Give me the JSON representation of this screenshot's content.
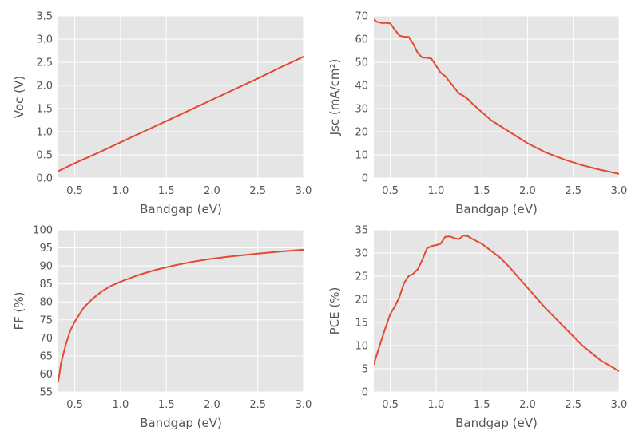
{
  "colors": {
    "series": "#e24a33",
    "panel_bg": "#e5e5e5",
    "grid": "#ffffff",
    "text": "#555555"
  },
  "chart_data": [
    {
      "type": "line",
      "xlabel": "Bandgap (eV)",
      "ylabel": "Voc (V)",
      "xlim": [
        0.32,
        3.0
      ],
      "ylim": [
        0,
        3.5
      ],
      "xticks": [
        "0.5",
        "1.0",
        "1.5",
        "2.0",
        "2.5",
        "3.0"
      ],
      "xtick_values": [
        0.5,
        1.0,
        1.5,
        2.0,
        2.5,
        3.0
      ],
      "yticks": [
        "0.0",
        "0.5",
        "1.0",
        "1.5",
        "2.0",
        "2.5",
        "3.0",
        "3.5"
      ],
      "ytick_values": [
        0,
        0.5,
        1.0,
        1.5,
        2.0,
        2.5,
        3.0,
        3.5
      ],
      "grid": true,
      "x": [
        0.32,
        0.5,
        0.75,
        1.0,
        1.25,
        1.5,
        1.75,
        2.0,
        2.25,
        2.5,
        2.75,
        3.0
      ],
      "y": [
        0.15,
        0.32,
        0.54,
        0.77,
        1.0,
        1.23,
        1.46,
        1.69,
        1.92,
        2.15,
        2.39,
        2.62
      ]
    },
    {
      "type": "line",
      "xlabel": "Bandgap (eV)",
      "ylabel": "Jsc (mA/cm²)",
      "xlim": [
        0.32,
        3.0
      ],
      "ylim": [
        0,
        70
      ],
      "xticks": [
        "0.5",
        "1.0",
        "1.5",
        "2.0",
        "2.5",
        "3.0"
      ],
      "xtick_values": [
        0.5,
        1.0,
        1.5,
        2.0,
        2.5,
        3.0
      ],
      "yticks": [
        "0",
        "10",
        "20",
        "30",
        "40",
        "50",
        "60",
        "70"
      ],
      "ytick_values": [
        0,
        10,
        20,
        30,
        40,
        50,
        60,
        70
      ],
      "grid": true,
      "x": [
        0.32,
        0.35,
        0.4,
        0.45,
        0.5,
        0.55,
        0.6,
        0.65,
        0.7,
        0.75,
        0.8,
        0.85,
        0.9,
        0.95,
        1.0,
        1.05,
        1.1,
        1.15,
        1.2,
        1.25,
        1.3,
        1.35,
        1.4,
        1.5,
        1.6,
        1.7,
        1.8,
        2.0,
        2.2,
        2.4,
        2.6,
        2.8,
        3.0
      ],
      "y": [
        68.5,
        67.5,
        67.0,
        67.0,
        66.8,
        64.0,
        61.5,
        61.0,
        61.0,
        58.0,
        54.0,
        52.0,
        52.0,
        51.5,
        48.5,
        45.5,
        44.0,
        41.5,
        39.0,
        36.5,
        35.5,
        34.0,
        32.0,
        28.5,
        25.0,
        22.5,
        20.0,
        15.0,
        11.0,
        8.0,
        5.5,
        3.5,
        1.8
      ]
    },
    {
      "type": "line",
      "xlabel": "Bandgap (eV)",
      "ylabel": "FF (%)",
      "xlim": [
        0.32,
        3.0
      ],
      "ylim": [
        55,
        100
      ],
      "xticks": [
        "0.5",
        "1.0",
        "1.5",
        "2.0",
        "2.5",
        "3.0"
      ],
      "xtick_values": [
        0.5,
        1.0,
        1.5,
        2.0,
        2.5,
        3.0
      ],
      "yticks": [
        "55",
        "60",
        "65",
        "70",
        "75",
        "80",
        "85",
        "90",
        "95",
        "100"
      ],
      "ytick_values": [
        55,
        60,
        65,
        70,
        75,
        80,
        85,
        90,
        95,
        100
      ],
      "grid": true,
      "x": [
        0.32,
        0.35,
        0.4,
        0.45,
        0.5,
        0.6,
        0.7,
        0.8,
        0.9,
        1.0,
        1.2,
        1.4,
        1.6,
        1.8,
        2.0,
        2.2,
        2.5,
        2.75,
        3.0
      ],
      "y": [
        58.0,
        63.0,
        68.0,
        72.0,
        74.5,
        78.5,
        81.0,
        83.0,
        84.5,
        85.6,
        87.5,
        89.0,
        90.2,
        91.2,
        92.0,
        92.6,
        93.4,
        94.0,
        94.5
      ]
    },
    {
      "type": "line",
      "xlabel": "Bandgap (eV)",
      "ylabel": "PCE (%)",
      "xlim": [
        0.32,
        3.0
      ],
      "ylim": [
        0,
        35
      ],
      "xticks": [
        "0.5",
        "1.0",
        "1.5",
        "2.0",
        "2.5",
        "3.0"
      ],
      "xtick_values": [
        0.5,
        1.0,
        1.5,
        2.0,
        2.5,
        3.0
      ],
      "yticks": [
        "0",
        "5",
        "10",
        "15",
        "20",
        "25",
        "30",
        "35"
      ],
      "ytick_values": [
        0,
        5,
        10,
        15,
        20,
        25,
        30,
        35
      ],
      "grid": true,
      "x": [
        0.32,
        0.4,
        0.45,
        0.5,
        0.55,
        0.6,
        0.65,
        0.7,
        0.75,
        0.8,
        0.85,
        0.9,
        0.95,
        1.0,
        1.05,
        1.1,
        1.15,
        1.2,
        1.25,
        1.3,
        1.35,
        1.4,
        1.5,
        1.6,
        1.7,
        1.8,
        2.0,
        2.2,
        2.4,
        2.6,
        2.8,
        3.0
      ],
      "y": [
        6.0,
        11.0,
        14.0,
        16.8,
        18.5,
        20.5,
        23.5,
        25.0,
        25.5,
        26.5,
        28.5,
        31.0,
        31.5,
        31.7,
        32.0,
        33.5,
        33.6,
        33.2,
        33.0,
        33.8,
        33.6,
        33.0,
        32.0,
        30.5,
        29.0,
        27.0,
        22.5,
        18.0,
        14.0,
        10.0,
        6.8,
        4.5
      ]
    }
  ]
}
